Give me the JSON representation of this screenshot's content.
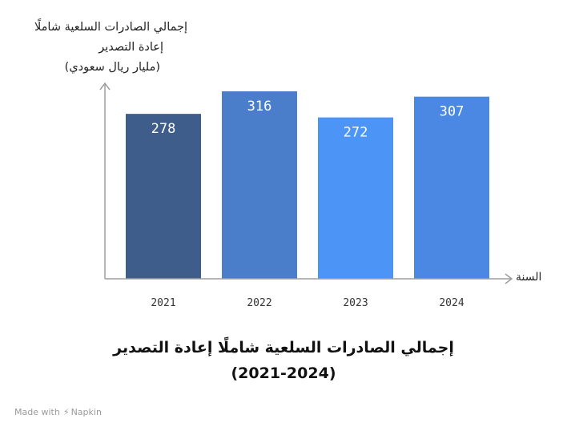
{
  "chart_data": {
    "type": "bar",
    "title": "إجمالي الصادرات السلعية شاملًا إعادة التصدير",
    "subtitle": "(2021-2024)",
    "ylabel_lines": [
      "إجمالي الصادرات السلعية شاملًا",
      "إعادة التصدير",
      "(مليار ريال سعودي)"
    ],
    "xlabel": "السنة",
    "categories": [
      "2021",
      "2022",
      "2023",
      "2024"
    ],
    "values": [
      278,
      316,
      272,
      307
    ],
    "ylim": [
      0,
      330
    ],
    "grid": false,
    "legend": "none",
    "bar_colors": [
      "#3f5d8a",
      "#4a7ecb",
      "#4c95f7",
      "#4a88e3"
    ],
    "label_color": "#ffffff",
    "axis_color": "#9e9e9e"
  },
  "watermark": {
    "made_with": "Made with",
    "brand": "Napkin"
  }
}
